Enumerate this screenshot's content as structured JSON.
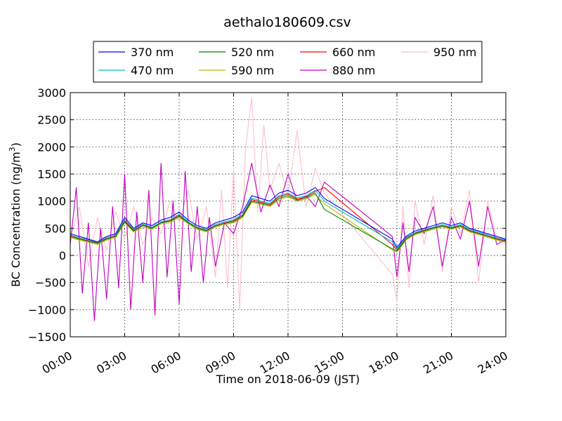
{
  "chart_data": {
    "type": "line",
    "title": "aethalo180609.csv",
    "xlabel": "Time on 2018-06-09 (JST)",
    "ylabel": "BC Concentration (ng/m",
    "ylabel_sup": "3",
    "ylabel_end": ")",
    "xlim": [
      "00:00",
      "24:00"
    ],
    "ylim": [
      -1500,
      3000
    ],
    "x_ticks": [
      "00:00",
      "03:00",
      "06:00",
      "09:00",
      "12:00",
      "15:00",
      "18:00",
      "21:00",
      "24:00"
    ],
    "y_ticks": [
      -1500,
      -1000,
      -500,
      0,
      500,
      1000,
      1500,
      2000,
      2500,
      3000
    ],
    "grid": true,
    "legend_placement": "top-center",
    "series": [
      {
        "name": "370 nm",
        "color": "#0000ff",
        "x": [
          "00:00",
          "00:30",
          "01:00",
          "01:30",
          "02:00",
          "02:30",
          "03:00",
          "03:30",
          "04:00",
          "04:30",
          "05:00",
          "05:30",
          "06:00",
          "06:30",
          "07:00",
          "07:30",
          "08:00",
          "08:30",
          "09:00",
          "09:30",
          "10:00",
          "10:30",
          "11:00",
          "11:30",
          "12:00",
          "12:30",
          "13:00",
          "13:30",
          "14:00",
          "17:45",
          "18:00",
          "18:30",
          "19:00",
          "19:30",
          "20:00",
          "20:30",
          "21:00",
          "21:30",
          "22:00",
          "22:30",
          "23:00",
          "23:30",
          "24:00"
        ],
        "y": [
          400,
          350,
          300,
          250,
          350,
          400,
          700,
          500,
          600,
          550,
          650,
          700,
          800,
          650,
          550,
          500,
          600,
          650,
          700,
          800,
          1100,
          1050,
          1000,
          1150,
          1200,
          1100,
          1150,
          1250,
          1050,
          300,
          150,
          350,
          450,
          500,
          550,
          600,
          550,
          600,
          500,
          450,
          400,
          350,
          300
        ]
      },
      {
        "name": "470 nm",
        "color": "#00bfbf",
        "x": [
          "00:00",
          "00:30",
          "01:00",
          "01:30",
          "02:00",
          "02:30",
          "03:00",
          "03:30",
          "04:00",
          "04:30",
          "05:00",
          "05:30",
          "06:00",
          "06:30",
          "07:00",
          "07:30",
          "08:00",
          "08:30",
          "09:00",
          "09:30",
          "10:00",
          "10:30",
          "11:00",
          "11:30",
          "12:00",
          "12:30",
          "13:00",
          "13:30",
          "14:00",
          "17:45",
          "18:00",
          "18:30",
          "19:00",
          "19:30",
          "20:00",
          "20:30",
          "21:00",
          "21:30",
          "22:00",
          "22:30",
          "23:00",
          "23:30",
          "24:00"
        ],
        "y": [
          380,
          330,
          290,
          240,
          330,
          380,
          660,
          480,
          580,
          520,
          620,
          660,
          760,
          620,
          520,
          480,
          570,
          620,
          660,
          760,
          1060,
          1000,
          960,
          1100,
          1150,
          1060,
          1100,
          1200,
          1000,
          250,
          120,
          330,
          420,
          480,
          520,
          570,
          520,
          570,
          480,
          430,
          380,
          330,
          290
        ]
      },
      {
        "name": "520 nm",
        "color": "#008000",
        "x": [
          "00:00",
          "00:30",
          "01:00",
          "01:30",
          "02:00",
          "02:30",
          "03:00",
          "03:30",
          "04:00",
          "04:30",
          "05:00",
          "05:30",
          "06:00",
          "06:30",
          "07:00",
          "07:30",
          "08:00",
          "08:30",
          "09:00",
          "09:30",
          "10:00",
          "10:30",
          "11:00",
          "11:30",
          "12:00",
          "12:30",
          "13:00",
          "13:30",
          "14:00",
          "17:45",
          "18:00",
          "18:30",
          "19:00",
          "19:30",
          "20:00",
          "20:30",
          "21:00",
          "21:30",
          "22:00",
          "22:30",
          "23:00",
          "23:30",
          "24:00"
        ],
        "y": [
          350,
          300,
          260,
          220,
          300,
          350,
          620,
          450,
          550,
          500,
          600,
          630,
          720,
          600,
          500,
          450,
          540,
          590,
          620,
          720,
          1000,
          960,
          920,
          1050,
          1100,
          1020,
          1060,
          1150,
          850,
          120,
          80,
          300,
          400,
          450,
          500,
          540,
          500,
          540,
          450,
          400,
          350,
          300,
          260
        ]
      },
      {
        "name": "590 nm",
        "color": "#bfbf00",
        "x": [
          "00:00",
          "00:30",
          "01:00",
          "01:30",
          "02:00",
          "02:30",
          "03:00",
          "03:30",
          "04:00",
          "04:30",
          "05:00",
          "05:30",
          "06:00",
          "06:30",
          "07:00",
          "07:30",
          "08:00",
          "08:30",
          "09:00",
          "09:30",
          "10:00",
          "10:30",
          "11:00",
          "11:30",
          "12:00",
          "12:30",
          "13:00",
          "13:30",
          "14:00",
          "17:45",
          "18:00",
          "18:30",
          "19:00",
          "19:30",
          "20:00",
          "20:30",
          "21:00",
          "21:30",
          "22:00",
          "22:30",
          "23:00",
          "23:30",
          "24:00"
        ],
        "y": [
          330,
          280,
          240,
          200,
          280,
          330,
          600,
          430,
          520,
          480,
          580,
          600,
          700,
          580,
          480,
          430,
          520,
          570,
          600,
          700,
          980,
          940,
          900,
          1020,
          1080,
          1000,
          1040,
          1120,
          950,
          100,
          60,
          280,
          380,
          430,
          480,
          520,
          480,
          520,
          430,
          380,
          330,
          280,
          240
        ]
      },
      {
        "name": "660 nm",
        "color": "#ff0000",
        "x": [
          "00:00",
          "00:30",
          "01:00",
          "01:30",
          "02:00",
          "02:30",
          "03:00",
          "03:30",
          "04:00",
          "04:30",
          "05:00",
          "05:30",
          "06:00",
          "06:30",
          "07:00",
          "07:30",
          "08:00",
          "08:30",
          "09:00",
          "09:30",
          "10:00",
          "10:30",
          "11:00",
          "11:30",
          "12:00",
          "12:30",
          "13:00",
          "13:30",
          "14:00",
          "17:45",
          "18:00",
          "18:30",
          "19:00",
          "19:30",
          "20:00",
          "20:30",
          "21:00",
          "21:30",
          "22:00",
          "22:30",
          "23:00",
          "23:30",
          "24:00"
        ],
        "y": [
          360,
          310,
          270,
          230,
          310,
          360,
          640,
          460,
          560,
          510,
          610,
          640,
          740,
          610,
          510,
          460,
          550,
          600,
          640,
          740,
          1030,
          980,
          940,
          1080,
          1130,
          1040,
          1080,
          1180,
          1250,
          200,
          100,
          320,
          410,
          460,
          510,
          550,
          510,
          550,
          460,
          410,
          360,
          310,
          270
        ]
      },
      {
        "name": "880 nm",
        "color": "#bf00bf",
        "x": [
          "00:00",
          "00:20",
          "00:40",
          "01:00",
          "01:20",
          "01:40",
          "02:00",
          "02:20",
          "02:40",
          "03:00",
          "03:20",
          "03:40",
          "04:00",
          "04:20",
          "04:40",
          "05:00",
          "05:20",
          "05:40",
          "06:00",
          "06:20",
          "06:40",
          "07:00",
          "07:20",
          "07:40",
          "08:00",
          "08:30",
          "09:00",
          "09:30",
          "10:00",
          "10:30",
          "11:00",
          "11:30",
          "12:00",
          "12:30",
          "13:00",
          "13:30",
          "14:00",
          "17:45",
          "18:00",
          "18:20",
          "18:40",
          "19:00",
          "19:30",
          "20:00",
          "20:30",
          "21:00",
          "21:30",
          "22:00",
          "22:30",
          "23:00",
          "23:30",
          "24:00"
        ],
        "y": [
          200,
          1250,
          -700,
          600,
          -1200,
          500,
          -800,
          900,
          -600,
          1500,
          -1000,
          800,
          -500,
          1200,
          -1100,
          1700,
          -400,
          1000,
          -900,
          1550,
          -300,
          900,
          -500,
          700,
          -200,
          600,
          400,
          900,
          1700,
          800,
          1300,
          900,
          1500,
          1000,
          1100,
          900,
          1350,
          350,
          -400,
          600,
          -300,
          700,
          400,
          900,
          -200,
          700,
          300,
          1000,
          -200,
          900,
          200,
          300
        ]
      },
      {
        "name": "950 nm",
        "color": "#ffc0cb",
        "x": [
          "00:00",
          "00:30",
          "01:00",
          "01:30",
          "02:00",
          "02:30",
          "03:00",
          "03:30",
          "04:00",
          "04:30",
          "05:00",
          "05:30",
          "06:00",
          "06:30",
          "07:00",
          "07:30",
          "08:00",
          "08:20",
          "08:40",
          "09:00",
          "09:20",
          "09:40",
          "10:00",
          "10:20",
          "10:40",
          "11:00",
          "11:30",
          "12:00",
          "12:30",
          "13:00",
          "13:30",
          "14:00",
          "17:45",
          "18:00",
          "18:20",
          "18:40",
          "19:00",
          "19:30",
          "20:00",
          "20:30",
          "21:00",
          "21:30",
          "22:00",
          "22:30",
          "23:00",
          "23:30",
          "24:00"
        ],
        "y": [
          300,
          900,
          -200,
          700,
          100,
          800,
          300,
          900,
          200,
          700,
          400,
          1000,
          600,
          1200,
          300,
          900,
          -400,
          1200,
          -600,
          1600,
          -1000,
          2000,
          2900,
          800,
          2400,
          1200,
          1700,
          1100,
          2300,
          900,
          1600,
          1150,
          -350,
          -850,
          900,
          -600,
          1000,
          200,
          1100,
          -300,
          900,
          400,
          1200,
          -500,
          1000,
          300,
          200
        ]
      }
    ]
  }
}
